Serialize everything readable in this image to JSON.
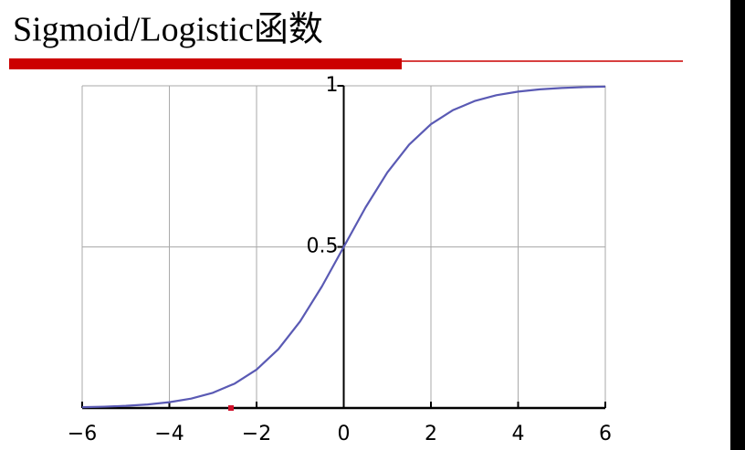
{
  "chart_data": {
    "type": "line",
    "title": "Sigmoid/Logistic函数",
    "x": [
      -6,
      -5.5,
      -5,
      -4.5,
      -4,
      -3.5,
      -3,
      -2.5,
      -2,
      -1.5,
      -1,
      -0.5,
      0,
      0.5,
      1,
      1.5,
      2,
      2.5,
      3,
      3.5,
      4,
      4.5,
      5,
      5.5,
      6
    ],
    "series": [
      {
        "color": "#5a5ab4",
        "values": [
          0.0025,
          0.0041,
          0.0067,
          0.011,
          0.018,
          0.0293,
          0.0474,
          0.0759,
          0.1192,
          0.1824,
          0.2689,
          0.3775,
          0.5,
          0.6225,
          0.7311,
          0.8176,
          0.8808,
          0.9241,
          0.9526,
          0.9707,
          0.982,
          0.989,
          0.9933,
          0.9959,
          0.9975
        ]
      }
    ],
    "xlim": [
      -6,
      6
    ],
    "ylim": [
      0,
      1
    ],
    "xticks": [
      {
        "value": -6,
        "label": "−6"
      },
      {
        "value": -4,
        "label": "−4"
      },
      {
        "value": -2,
        "label": "−2"
      },
      0,
      2,
      4,
      6
    ],
    "yticks": [
      0.5,
      1
    ],
    "grid": true
  }
}
